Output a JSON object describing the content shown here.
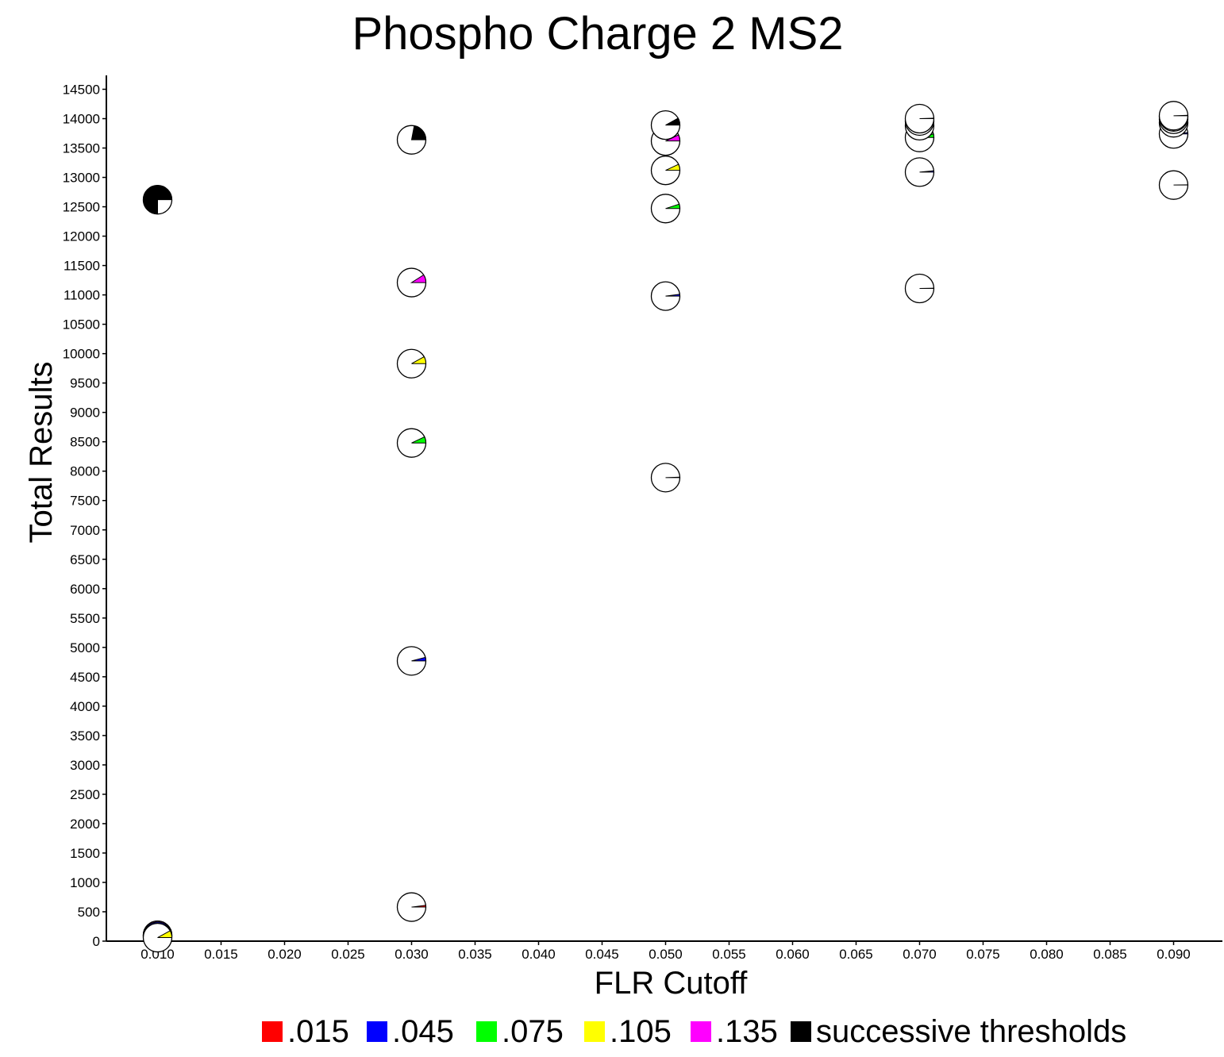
{
  "chart_data": {
    "type": "scatter",
    "subtype": "pie-glyph scatter",
    "title": "Phospho Charge 2 MS2",
    "xlabel": "FLR Cutoff",
    "ylabel": "Total Results",
    "xlim": [
      0.006,
      0.0935
    ],
    "ylim": [
      0,
      14800
    ],
    "x_ticks": [
      "0.010",
      "0.015",
      "0.020",
      "0.025",
      "0.030",
      "0.035",
      "0.040",
      "0.045",
      "0.050",
      "0.055",
      "0.060",
      "0.065",
      "0.070",
      "0.075",
      "0.080",
      "0.085",
      "0.090"
    ],
    "y_ticks": [
      "0",
      "500",
      "1000",
      "1500",
      "2000",
      "2500",
      "3000",
      "3500",
      "4000",
      "4500",
      "5000",
      "5500",
      "6000",
      "6500",
      "7000",
      "7500",
      "8000",
      "8500",
      "9000",
      "9500",
      "10000",
      "10500",
      "11000",
      "11500",
      "12000",
      "12500",
      "13000",
      "13500",
      "14000",
      "14500"
    ],
    "grid": false,
    "legend_position": "bottom",
    "legend": [
      {
        "label": ".015",
        "color": "#ff0000"
      },
      {
        "label": ".045",
        "color": "#0000ff"
      },
      {
        "label": ".075",
        "color": "#00ff00"
      },
      {
        "label": ".105",
        "color": "#ffff00"
      },
      {
        "label": ".135",
        "color": "#ff00ff"
      },
      {
        "label": "successive thresholds",
        "color": "#000000"
      }
    ],
    "points": [
      {
        "x": 0.01,
        "y": 100,
        "color": "#ff00ff",
        "fraction": 1.0
      },
      {
        "x": 0.01,
        "y": 80,
        "color": "#0000ff",
        "fraction": 0.55
      },
      {
        "x": 0.01,
        "y": 60,
        "color": "#ffff00",
        "fraction": 0.08
      },
      {
        "x": 0.01,
        "y": 12620,
        "color": "#000000",
        "fraction": 0.75
      },
      {
        "x": 0.03,
        "y": 580,
        "color": "#ff0000",
        "fraction": 0.02
      },
      {
        "x": 0.03,
        "y": 4770,
        "color": "#0000ff",
        "fraction": 0.04
      },
      {
        "x": 0.03,
        "y": 8480,
        "color": "#00ff00",
        "fraction": 0.07
      },
      {
        "x": 0.03,
        "y": 9830,
        "color": "#ffff00",
        "fraction": 0.08
      },
      {
        "x": 0.03,
        "y": 11210,
        "color": "#ff00ff",
        "fraction": 0.09
      },
      {
        "x": 0.03,
        "y": 13640,
        "color": "#000000",
        "fraction": 0.22
      },
      {
        "x": 0.05,
        "y": 7890,
        "color": "#000000",
        "fraction": 0.005
      },
      {
        "x": 0.05,
        "y": 10980,
        "color": "#0000ff",
        "fraction": 0.02
      },
      {
        "x": 0.05,
        "y": 12470,
        "color": "#00ff00",
        "fraction": 0.05
      },
      {
        "x": 0.05,
        "y": 13120,
        "color": "#ffff00",
        "fraction": 0.07
      },
      {
        "x": 0.05,
        "y": 13620,
        "color": "#ff00ff",
        "fraction": 0.07
      },
      {
        "x": 0.05,
        "y": 13890,
        "color": "#000000",
        "fraction": 0.08
      },
      {
        "x": 0.07,
        "y": 11110,
        "color": "#000000",
        "fraction": 0.003
      },
      {
        "x": 0.07,
        "y": 13090,
        "color": "#0000ff",
        "fraction": 0.015
      },
      {
        "x": 0.07,
        "y": 13680,
        "color": "#00ff00",
        "fraction": 0.04
      },
      {
        "x": 0.07,
        "y": 13880,
        "color": "#ffff00",
        "fraction": 0.05
      },
      {
        "x": 0.07,
        "y": 13960,
        "color": "#ff00ff",
        "fraction": 0.05
      },
      {
        "x": 0.07,
        "y": 14000,
        "color": "#000000",
        "fraction": 0.005
      },
      {
        "x": 0.09,
        "y": 12870,
        "color": "#000000",
        "fraction": 0.003
      },
      {
        "x": 0.09,
        "y": 13740,
        "color": "#0000ff",
        "fraction": 0.015
      },
      {
        "x": 0.09,
        "y": 13930,
        "color": "#00ff00",
        "fraction": 0.04
      },
      {
        "x": 0.09,
        "y": 13990,
        "color": "#ffff00",
        "fraction": 0.02
      },
      {
        "x": 0.09,
        "y": 14030,
        "color": "#ff00ff",
        "fraction": 0.04
      },
      {
        "x": 0.09,
        "y": 14050,
        "color": "#000000",
        "fraction": 0.005
      }
    ]
  }
}
